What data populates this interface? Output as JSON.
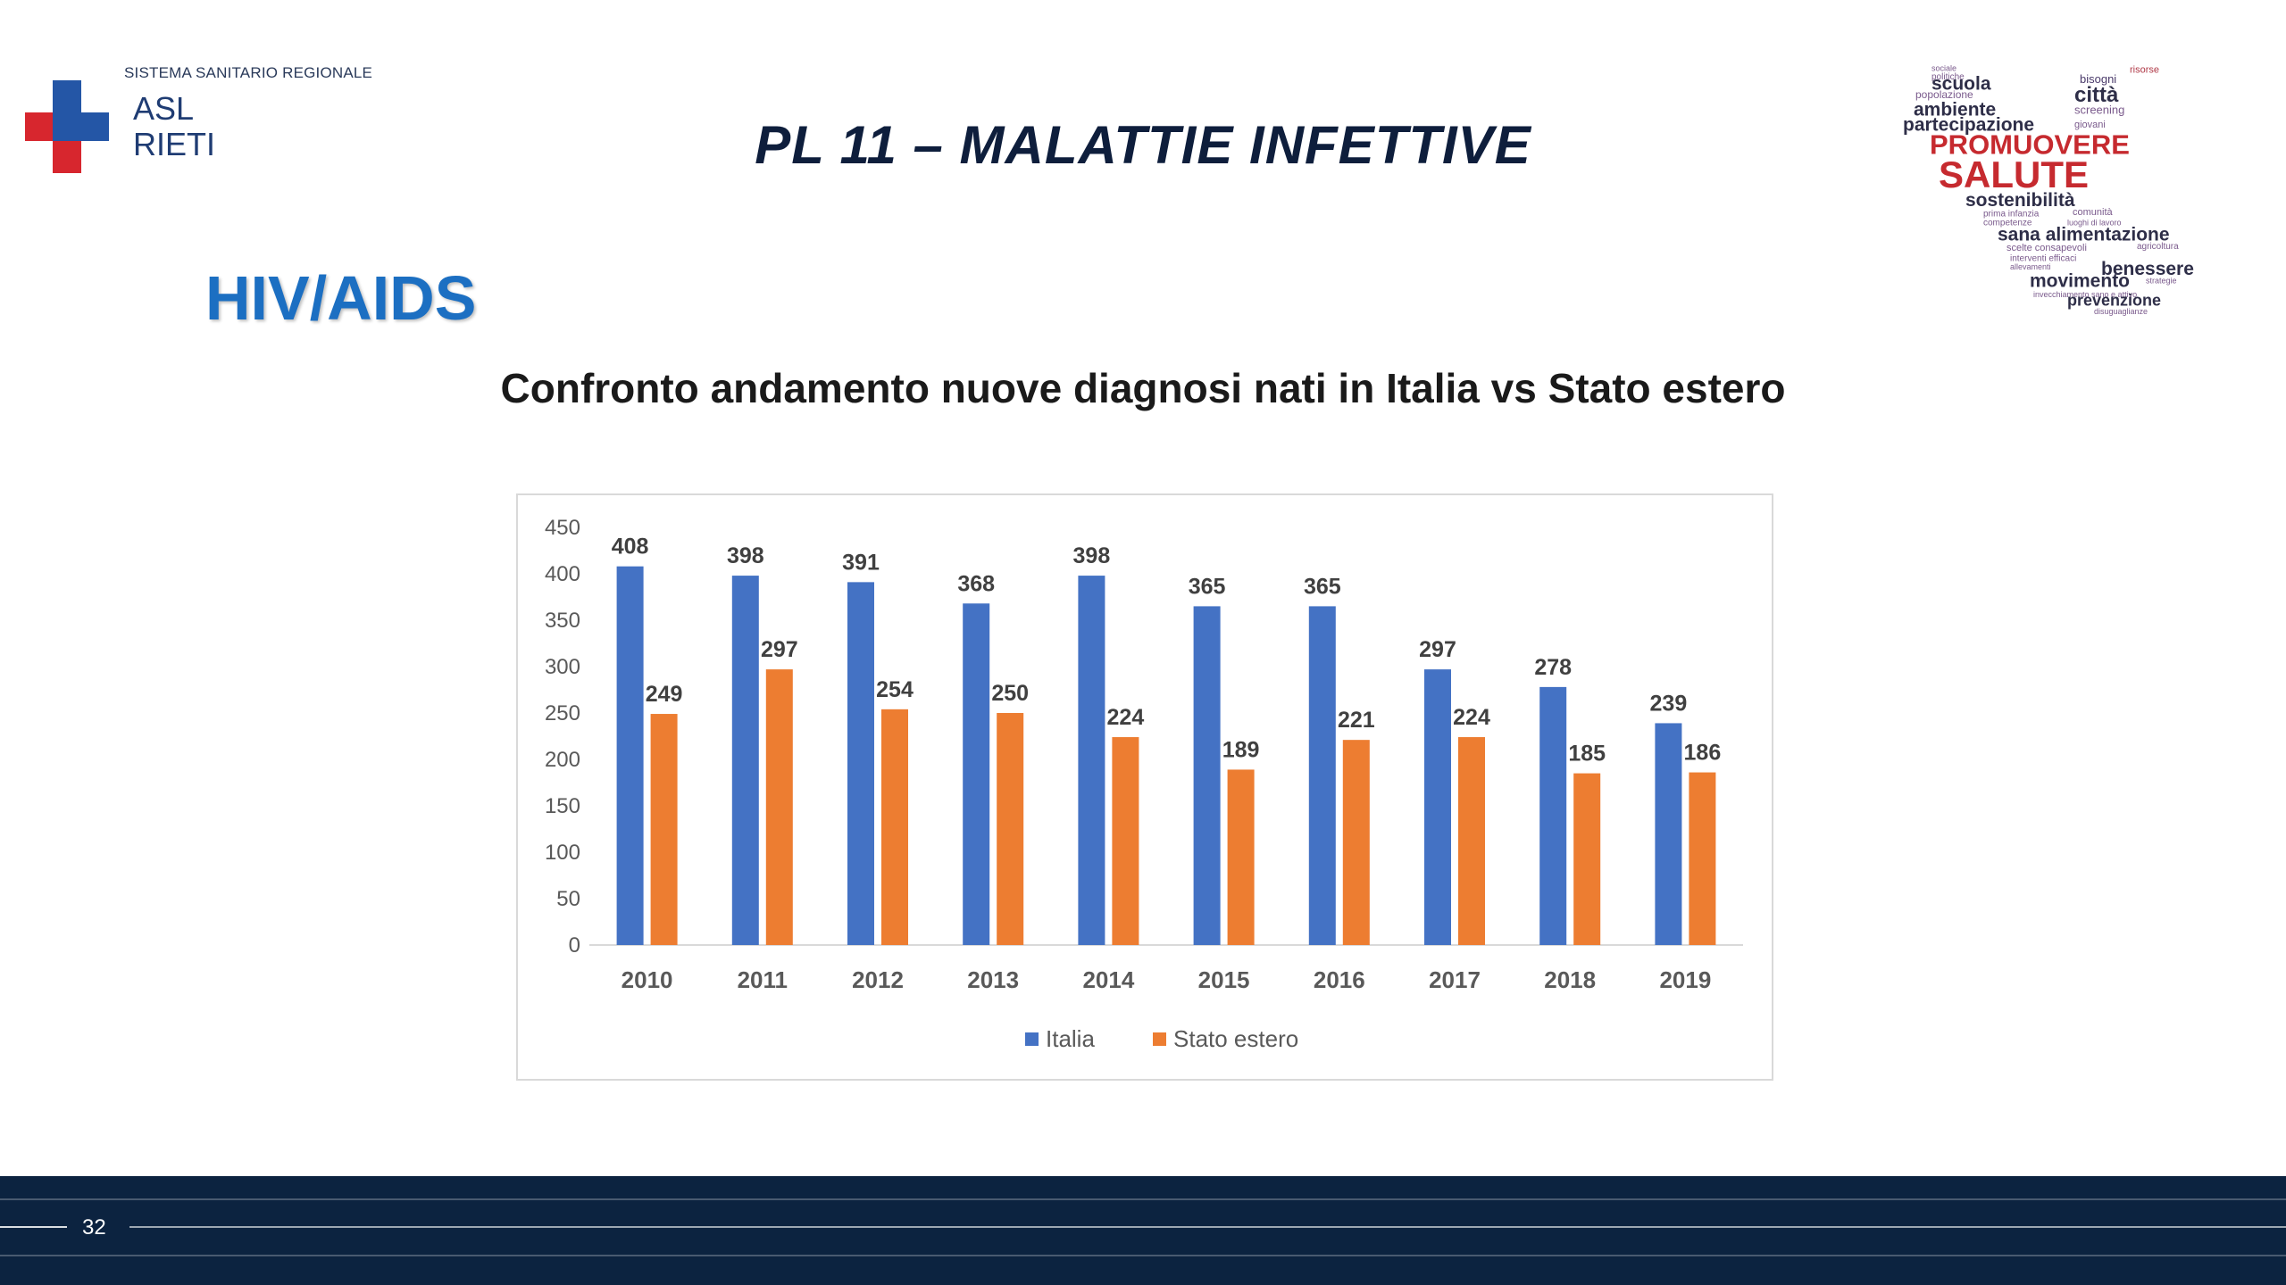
{
  "header": {
    "org_label": "SISTEMA SANITARIO REGIONALE",
    "logo_line1": "ASL",
    "logo_line2": "RIETI",
    "slide_title": "PL 11 – MALATTIE INFETTIVE",
    "section_title": "HIV/AIDS"
  },
  "wordcloud": {
    "words": [
      "sociale",
      "politiche",
      "risorse",
      "scuola",
      "bisogni",
      "popolazione",
      "città",
      "ambiente",
      "screening",
      "partecipazione",
      "giovani",
      "PROMUOVERE",
      "SALUTE",
      "sostenibilità",
      "comunità",
      "prima infanzia",
      "competenze",
      "luoghi di lavoro",
      "sana alimentazione",
      "scelte consapevoli",
      "agricoltura",
      "interventi efficaci",
      "allevamenti",
      "benessere",
      "movimento",
      "strategie",
      "invecchiamento sano e attivo",
      "prevenzione",
      "disuguaglianze"
    ]
  },
  "chart_data": {
    "type": "bar",
    "title": "Confronto andamento nuove diagnosi nati in Italia vs Stato estero",
    "xlabel": "",
    "ylabel": "",
    "categories": [
      "2010",
      "2011",
      "2012",
      "2013",
      "2014",
      "2015",
      "2016",
      "2017",
      "2018",
      "2019"
    ],
    "series": [
      {
        "name": "Italia",
        "color": "#4472c4",
        "values": [
          408,
          398,
          391,
          368,
          398,
          365,
          365,
          297,
          278,
          239
        ]
      },
      {
        "name": "Stato estero",
        "color": "#ed7d31",
        "values": [
          249,
          297,
          254,
          250,
          224,
          189,
          221,
          224,
          185,
          186
        ]
      }
    ],
    "ylim": [
      0,
      450
    ],
    "yticks": [
      0,
      50,
      100,
      150,
      200,
      250,
      300,
      350,
      400,
      450
    ],
    "grid": false,
    "legend": "bottom-center",
    "data_labels": true
  },
  "footer": {
    "page_number": "32"
  }
}
